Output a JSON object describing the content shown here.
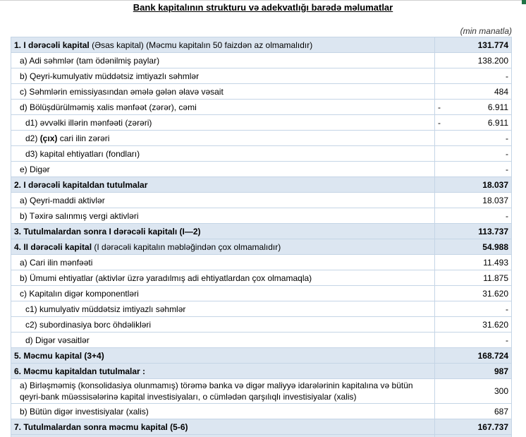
{
  "title": "Bank kapitalının strukturu və adekvatlığı barədə məlumatlar",
  "unit": "(min manatla)",
  "rows": [
    {
      "cls": "h",
      "label": [
        {
          "t": "1. I dərəcəli kapital",
          "b": true
        },
        {
          "t": " (Əsas kapital) (Məcmu kapitalın 50 faizdən  az olmamalıdır)"
        }
      ],
      "value": "131.774"
    },
    {
      "cls": "sub",
      "label": [
        {
          "t": "a) Adi səhmlər (tam ödənilmiş paylar)"
        }
      ],
      "value": "138.200"
    },
    {
      "cls": "sub",
      "label": [
        {
          "t": "b) Qeyri-kumulyativ müddətsiz imtiyazlı səhmlər"
        }
      ],
      "value": "-"
    },
    {
      "cls": "sub",
      "label": [
        {
          "t": "c) Səhmlərin emissiyasından əmələ gələn  əlavə vəsait"
        }
      ],
      "value": "484"
    },
    {
      "cls": "sub",
      "label": [
        {
          "t": "d)   Bölüşdürülməmiş xalis mənfəət (zərər), cəmi"
        }
      ],
      "value": "6.911",
      "neg": "-"
    },
    {
      "cls": "sub2",
      "label": [
        {
          "t": "d1) əvvəlki illərin mənfəəti (zərəri)"
        }
      ],
      "value": "6.911",
      "neg": "-"
    },
    {
      "cls": "sub2",
      "label": [
        {
          "t": "d2) "
        },
        {
          "t": "(çıx)",
          "b": true
        },
        {
          "t": " cari ilin zərəri"
        }
      ],
      "value": "-"
    },
    {
      "cls": "sub2",
      "label": [
        {
          "t": "d3) kapital ehtiyatları (fondları)"
        }
      ],
      "value": "-"
    },
    {
      "cls": "sub",
      "label": [
        {
          "t": "e) Digər"
        }
      ],
      "value": "-"
    },
    {
      "cls": "h",
      "label": [
        {
          "t": "2. I dərəcəli kapitaldan  tutulmalar",
          "b": true
        }
      ],
      "value": "18.037"
    },
    {
      "cls": "sub",
      "label": [
        {
          "t": "a) Qeyri-maddi aktivlər"
        }
      ],
      "value": "18.037"
    },
    {
      "cls": "sub",
      "label": [
        {
          "t": "b) Təxirə salınmış vergi aktivləri"
        }
      ],
      "value": "-"
    },
    {
      "cls": "h",
      "label": [
        {
          "t": "3. Tutulmalardan  sonra I dərəcəli kapitalı (I—2)",
          "b": true
        }
      ],
      "value": "113.737"
    },
    {
      "cls": "h",
      "label": [
        {
          "t": "4. II dərəcəli  kapital",
          "b": true
        },
        {
          "t": " (I dərəcəli  kapitalın  məbləğindən çox olmamalıdır)"
        }
      ],
      "value": "54.988"
    },
    {
      "cls": "sub",
      "label": [
        {
          "t": "a) Cari ilin mənfəəti"
        }
      ],
      "value": "11.493"
    },
    {
      "cls": "sub",
      "label": [
        {
          "t": "b) Ümumi ehtiyatlar (aktivlər üzrə yaradılmış adi ehtiyatlardan çox olmamaqla)"
        }
      ],
      "value": "11.875"
    },
    {
      "cls": "sub",
      "label": [
        {
          "t": "c)  Kapitalın digər komponentləri"
        }
      ],
      "value": "31.620"
    },
    {
      "cls": "sub2",
      "label": [
        {
          "t": "c1) kumulyativ müddətsiz imtiyazlı səhmlər"
        }
      ],
      "value": "-"
    },
    {
      "cls": "sub2",
      "label": [
        {
          "t": "c2) subordinasiya borc öhdəlikləri"
        }
      ],
      "value": "31.620"
    },
    {
      "cls": "sub2",
      "label": [
        {
          "t": "d) Digər vəsaitlər"
        }
      ],
      "value": "-"
    },
    {
      "cls": "h",
      "label": [
        {
          "t": "5. Məcmu kapital (3+4)",
          "b": true
        }
      ],
      "value": "168.724"
    },
    {
      "cls": "h",
      "label": [
        {
          "t": "6. Məcmu kapitaldan tutulmalar :",
          "b": true
        }
      ],
      "value": "987"
    },
    {
      "cls": "sub wrap",
      "label": [
        {
          "t": "a)  Birləşməmiş (konsolidasiya olunmamış) törəmə banka və digər maliyyə idarələrinin kapitalına və bütün qeyri-bank müəssisələrinə kapital investisiyaları, o cümlədən qarşılıqlı investisiyalar (xalis)"
        }
      ],
      "value": "300"
    },
    {
      "cls": "sub",
      "label": [
        {
          "t": "b)    Bütün digər investisiyalar (xalis)"
        }
      ],
      "value": "687"
    },
    {
      "cls": "h",
      "label": [
        {
          "t": "7. Tutulmalardan  sonra məcmu kapital (5-6)",
          "b": true
        }
      ],
      "value": "167.737"
    },
    {
      "cls": "h",
      "label": [],
      "value": ""
    }
  ]
}
